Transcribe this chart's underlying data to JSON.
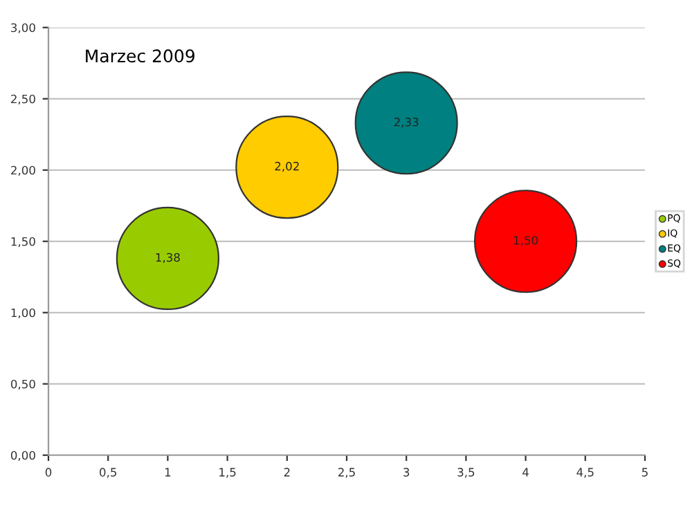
{
  "chart_data": {
    "type": "bubble",
    "title": "Marzec 2009",
    "series": [
      {
        "name": "PQ",
        "color": "#99cc00",
        "x": [
          1
        ],
        "values": [
          1.38
        ],
        "sizes": [
          1
        ],
        "value_labels": [
          "1,38"
        ]
      },
      {
        "name": "IQ",
        "color": "#ffcc00",
        "x": [
          2
        ],
        "values": [
          2.02
        ],
        "sizes": [
          1
        ],
        "value_labels": [
          "2,02"
        ]
      },
      {
        "name": "EQ",
        "color": "#008080",
        "x": [
          3
        ],
        "values": [
          2.33
        ],
        "sizes": [
          1
        ],
        "value_labels": [
          "2,33"
        ]
      },
      {
        "name": "SQ",
        "color": "#ff0000",
        "x": [
          4
        ],
        "values": [
          1.5
        ],
        "sizes": [
          1
        ],
        "value_labels": [
          "1,50"
        ]
      }
    ],
    "xlim": [
      0,
      5
    ],
    "xticks": [
      0,
      {
        "value": 0.5,
        "label": "0,5"
      },
      1,
      {
        "value": 1.5,
        "label": "1,5"
      },
      2,
      {
        "value": 2.5,
        "label": "2,5"
      },
      3,
      {
        "value": 3.5,
        "label": "3,5"
      },
      4,
      {
        "value": 4.5,
        "label": "4,5"
      },
      5
    ],
    "ylim": [
      0,
      3
    ],
    "yticks": [
      {
        "value": 0,
        "label": "0,00"
      },
      {
        "value": 0.5,
        "label": "0,50"
      },
      {
        "value": 1,
        "label": "1,00"
      },
      {
        "value": 1.5,
        "label": "1,50"
      },
      {
        "value": 2,
        "label": "2,00"
      },
      {
        "value": 2.5,
        "label": "2,50"
      },
      {
        "value": 3,
        "label": "3,00"
      }
    ],
    "grid": "y",
    "legend": "right"
  }
}
